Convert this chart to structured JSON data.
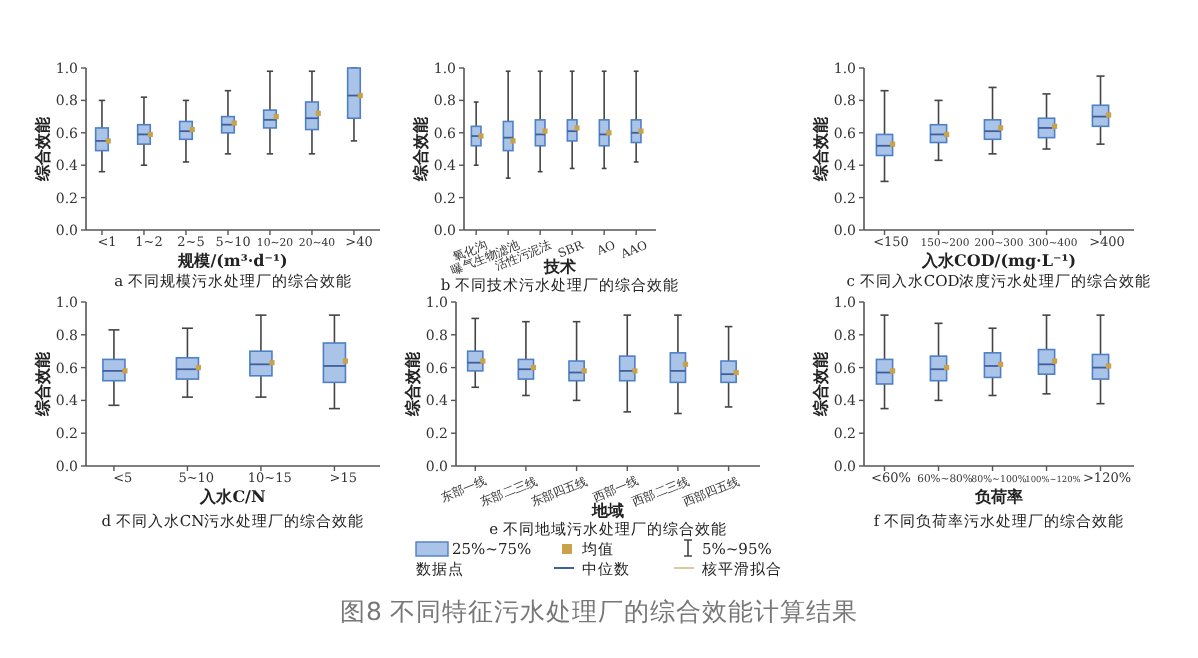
{
  "chart_data": [
    {
      "type": "box",
      "title": "a 不同规模污水处理厂的综合效能",
      "xlabel": "规模/(m³·d⁻¹)",
      "ylabel": "综合效能",
      "categories": [
        "<1",
        "1~2",
        "2~5",
        "5~10",
        "10~20",
        "20~40",
        ">40"
      ],
      "ylim": [
        0,
        1
      ],
      "yticks": [
        {
          "value": 0,
          "label": "0.0"
        },
        {
          "value": 0.2,
          "label": "0.2"
        },
        {
          "value": 0.4,
          "label": "0.4"
        },
        {
          "value": 0.6,
          "label": "0.6"
        },
        {
          "value": 0.8,
          "label": "0.8"
        },
        {
          "value": 1,
          "label": "1.0"
        }
      ],
      "grid": false,
      "series": [
        {
          "color": "#a9c4e8",
          "boxes": [
            {
              "low": 0.36,
              "q1": 0.49,
              "median": 0.55,
              "q3": 0.63,
              "high": 0.8,
              "mean": 0.55
            },
            {
              "low": 0.4,
              "q1": 0.53,
              "median": 0.59,
              "q3": 0.65,
              "high": 0.82,
              "mean": 0.59
            },
            {
              "low": 0.42,
              "q1": 0.56,
              "median": 0.61,
              "q3": 0.67,
              "high": 0.8,
              "mean": 0.62
            },
            {
              "low": 0.47,
              "q1": 0.6,
              "median": 0.65,
              "q3": 0.7,
              "high": 0.86,
              "mean": 0.66
            },
            {
              "low": 0.47,
              "q1": 0.63,
              "median": 0.68,
              "q3": 0.74,
              "high": 0.98,
              "mean": 0.7
            },
            {
              "low": 0.47,
              "q1": 0.62,
              "median": 0.69,
              "q3": 0.79,
              "high": 0.98,
              "mean": 0.72
            },
            {
              "low": 0.55,
              "q1": 0.69,
              "median": 0.83,
              "q3": 1.0,
              "high": 1.0,
              "mean": 0.83
            }
          ]
        }
      ]
    },
    {
      "type": "box",
      "title": "b 不同技术污水处理厂的综合效能",
      "xlabel": "技术",
      "ylabel": "综合效能",
      "categories": [
        "氧化沟",
        "曝气生物滤池",
        "活性污泥法",
        "SBR",
        "AO",
        "AAO"
      ],
      "ylim": [
        0,
        1
      ],
      "yticks": [
        {
          "value": 0,
          "label": "0.0"
        },
        {
          "value": 0.2,
          "label": "0.2"
        },
        {
          "value": 0.4,
          "label": "0.4"
        },
        {
          "value": 0.6,
          "label": "0.6"
        },
        {
          "value": 0.8,
          "label": "0.8"
        },
        {
          "value": 1,
          "label": "1.0"
        }
      ],
      "grid": false,
      "series": [
        {
          "color": "#a9c4e8",
          "boxes": [
            {
              "low": 0.4,
              "q1": 0.52,
              "median": 0.58,
              "q3": 0.64,
              "high": 0.79,
              "mean": 0.58
            },
            {
              "low": 0.32,
              "q1": 0.49,
              "median": 0.57,
              "q3": 0.67,
              "high": 0.98,
              "mean": 0.55
            },
            {
              "low": 0.36,
              "q1": 0.52,
              "median": 0.59,
              "q3": 0.68,
              "high": 0.98,
              "mean": 0.61
            },
            {
              "low": 0.38,
              "q1": 0.55,
              "median": 0.61,
              "q3": 0.68,
              "high": 0.98,
              "mean": 0.63
            },
            {
              "low": 0.38,
              "q1": 0.52,
              "median": 0.59,
              "q3": 0.68,
              "high": 0.98,
              "mean": 0.6
            },
            {
              "low": 0.42,
              "q1": 0.54,
              "median": 0.6,
              "q3": 0.68,
              "high": 0.98,
              "mean": 0.61
            }
          ]
        }
      ]
    },
    {
      "type": "box",
      "title": "c 不同入水COD浓度污水处理厂的综合效能",
      "xlabel": "入水COD/(mg·L⁻¹)",
      "ylabel": "综合效能",
      "categories": [
        "<150",
        "150~200",
        "200~300",
        "300~400",
        ">400"
      ],
      "ylim": [
        0,
        1
      ],
      "yticks": [
        {
          "value": 0,
          "label": "0.0"
        },
        {
          "value": 0.2,
          "label": "0.2"
        },
        {
          "value": 0.4,
          "label": "0.4"
        },
        {
          "value": 0.6,
          "label": "0.6"
        },
        {
          "value": 0.8,
          "label": "0.8"
        },
        {
          "value": 1,
          "label": "1.0"
        }
      ],
      "grid": false,
      "series": [
        {
          "color": "#a9c4e8",
          "boxes": [
            {
              "low": 0.3,
              "q1": 0.46,
              "median": 0.52,
              "q3": 0.59,
              "high": 0.86,
              "mean": 0.53
            },
            {
              "low": 0.43,
              "q1": 0.54,
              "median": 0.59,
              "q3": 0.65,
              "high": 0.8,
              "mean": 0.59
            },
            {
              "low": 0.47,
              "q1": 0.56,
              "median": 0.61,
              "q3": 0.68,
              "high": 0.88,
              "mean": 0.63
            },
            {
              "low": 0.5,
              "q1": 0.57,
              "median": 0.63,
              "q3": 0.69,
              "high": 0.84,
              "mean": 0.64
            },
            {
              "low": 0.53,
              "q1": 0.64,
              "median": 0.7,
              "q3": 0.77,
              "high": 0.95,
              "mean": 0.71
            }
          ]
        }
      ]
    },
    {
      "type": "box",
      "title": "d 不同入水CN污水处理厂的综合效能",
      "xlabel": "入水C/N",
      "ylabel": "综合效能",
      "categories": [
        "<5",
        "5~10",
        "10~15",
        ">15"
      ],
      "ylim": [
        0,
        1
      ],
      "yticks": [
        {
          "value": 0,
          "label": "0.0"
        },
        {
          "value": 0.2,
          "label": "0.2"
        },
        {
          "value": 0.4,
          "label": "0.4"
        },
        {
          "value": 0.6,
          "label": "0.6"
        },
        {
          "value": 0.8,
          "label": "0.8"
        },
        {
          "value": 1,
          "label": "1.0"
        }
      ],
      "grid": false,
      "series": [
        {
          "color": "#a9c4e8",
          "boxes": [
            {
              "low": 0.37,
              "q1": 0.52,
              "median": 0.58,
              "q3": 0.65,
              "high": 0.83,
              "mean": 0.58
            },
            {
              "low": 0.42,
              "q1": 0.53,
              "median": 0.59,
              "q3": 0.66,
              "high": 0.84,
              "mean": 0.6
            },
            {
              "low": 0.42,
              "q1": 0.55,
              "median": 0.62,
              "q3": 0.7,
              "high": 0.92,
              "mean": 0.63
            },
            {
              "low": 0.35,
              "q1": 0.51,
              "median": 0.61,
              "q3": 0.75,
              "high": 0.92,
              "mean": 0.64
            }
          ]
        }
      ]
    },
    {
      "type": "box",
      "title": "e 不同地域污水处理厂的综合效能",
      "xlabel": "地域",
      "ylabel": "综合效能",
      "categories": [
        "东部一线",
        "东部二三线",
        "东部四五线",
        "西部一线",
        "西部二三线",
        "西部四五线"
      ],
      "ylim": [
        0,
        1
      ],
      "yticks": [
        {
          "value": 0,
          "label": "0.0"
        },
        {
          "value": 0.2,
          "label": "0.2"
        },
        {
          "value": 0.4,
          "label": "0.4"
        },
        {
          "value": 0.6,
          "label": "0.6"
        },
        {
          "value": 0.8,
          "label": "0.8"
        },
        {
          "value": 1,
          "label": "1.0"
        }
      ],
      "grid": false,
      "annotations": [
        "25%~75%",
        "均值",
        "5%~95%",
        "数据点",
        "中位数",
        "核平滑拟合"
      ],
      "series": [
        {
          "color": "#a9c4e8",
          "boxes": [
            {
              "low": 0.48,
              "q1": 0.58,
              "median": 0.63,
              "q3": 0.7,
              "high": 0.9,
              "mean": 0.64
            },
            {
              "low": 0.43,
              "q1": 0.53,
              "median": 0.59,
              "q3": 0.65,
              "high": 0.88,
              "mean": 0.6
            },
            {
              "low": 0.4,
              "q1": 0.52,
              "median": 0.57,
              "q3": 0.64,
              "high": 0.88,
              "mean": 0.58
            },
            {
              "low": 0.33,
              "q1": 0.52,
              "median": 0.58,
              "q3": 0.67,
              "high": 0.92,
              "mean": 0.58
            },
            {
              "low": 0.32,
              "q1": 0.51,
              "median": 0.58,
              "q3": 0.69,
              "high": 0.92,
              "mean": 0.62
            },
            {
              "low": 0.36,
              "q1": 0.51,
              "median": 0.56,
              "q3": 0.64,
              "high": 0.85,
              "mean": 0.57
            }
          ]
        }
      ]
    },
    {
      "type": "box",
      "title": "f 不同负荷率污水处理厂的综合效能",
      "xlabel": "负荷率",
      "ylabel": "综合效能",
      "categories": [
        "<60%",
        "60%~80%",
        "80%~100%",
        "100%~120%",
        ">120%"
      ],
      "ylim": [
        0,
        1
      ],
      "yticks": [
        {
          "value": 0,
          "label": "0.0"
        },
        {
          "value": 0.2,
          "label": "0.2"
        },
        {
          "value": 0.4,
          "label": "0.4"
        },
        {
          "value": 0.6,
          "label": "0.6"
        },
        {
          "value": 0.8,
          "label": "0.8"
        },
        {
          "value": 1,
          "label": "1.0"
        }
      ],
      "grid": false,
      "annotations": [
        "图8 不同特征污水处理厂的综合效能计算结果"
      ],
      "series": [
        {
          "color": "#a9c4e8",
          "boxes": [
            {
              "low": 0.35,
              "q1": 0.5,
              "median": 0.57,
              "q3": 0.65,
              "high": 0.92,
              "mean": 0.58
            },
            {
              "low": 0.4,
              "q1": 0.52,
              "median": 0.59,
              "q3": 0.67,
              "high": 0.87,
              "mean": 0.6
            },
            {
              "low": 0.43,
              "q1": 0.54,
              "median": 0.61,
              "q3": 0.69,
              "high": 0.84,
              "mean": 0.62
            },
            {
              "low": 0.44,
              "q1": 0.56,
              "median": 0.62,
              "q3": 0.71,
              "high": 0.92,
              "mean": 0.64
            },
            {
              "low": 0.38,
              "q1": 0.53,
              "median": 0.6,
              "q3": 0.68,
              "high": 0.92,
              "mean": 0.61
            }
          ]
        }
      ]
    }
  ]
}
